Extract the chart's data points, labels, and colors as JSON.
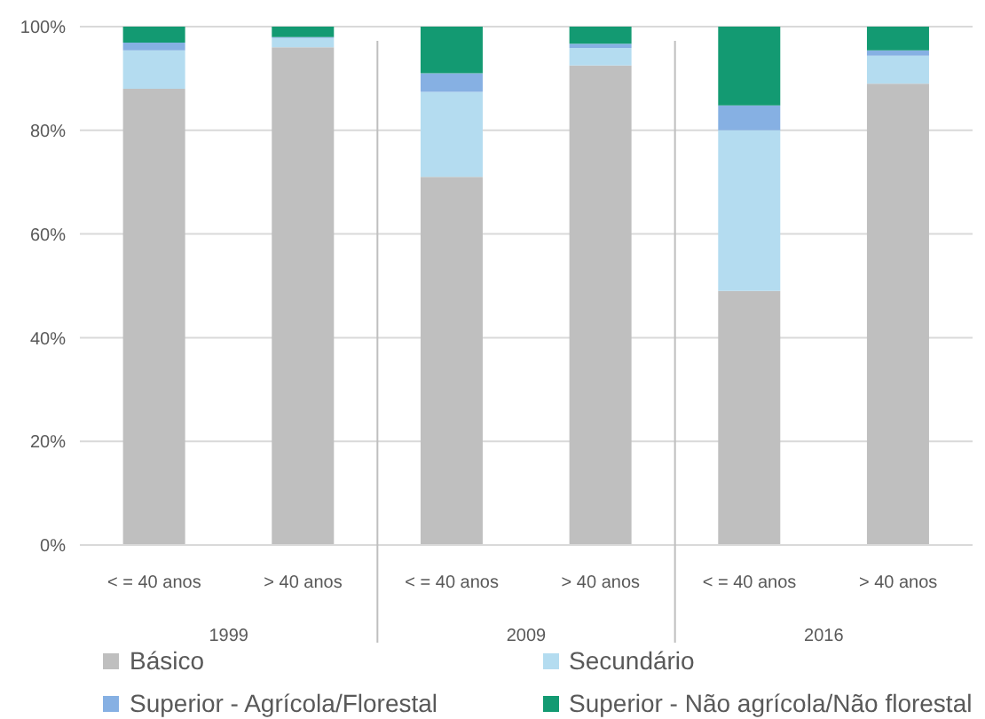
{
  "chart_data": {
    "type": "bar",
    "stacked": true,
    "categories": [
      "< = 40 anos",
      "> 40 anos",
      "< = 40 anos",
      "> 40 anos",
      "< = 40 anos",
      "> 40 anos"
    ],
    "annotations": [
      "1999",
      "2009",
      "2016"
    ],
    "series": [
      {
        "name": "Básico",
        "color": "#bfbfbf",
        "values": [
          88,
          96,
          71,
          92.5,
          49,
          89
        ]
      },
      {
        "name": "Secundário",
        "color": "#b4dcf0",
        "values": [
          7.4,
          1.8,
          16.4,
          3.4,
          31,
          5.4
        ]
      },
      {
        "name": "Superior - Agrícola/Florestal",
        "color": "#86b0e3",
        "values": [
          1.5,
          0.2,
          3.6,
          0.8,
          4.8,
          1
        ]
      },
      {
        "name": "Superior - Não agrícola/Não florestal",
        "color": "#139a72",
        "values": [
          3.1,
          2,
          9,
          3.3,
          15.2,
          4.6
        ]
      }
    ],
    "ylim": [
      0,
      100
    ],
    "yticks": [
      {
        "value": 0,
        "label": "0%"
      },
      {
        "value": 20,
        "label": "20%"
      },
      {
        "value": 40,
        "label": "40%"
      },
      {
        "value": 60,
        "label": "60%"
      },
      {
        "value": 80,
        "label": "80%"
      },
      {
        "value": 100,
        "label": "100%"
      }
    ],
    "grid": "y",
    "legend": "bottom"
  }
}
